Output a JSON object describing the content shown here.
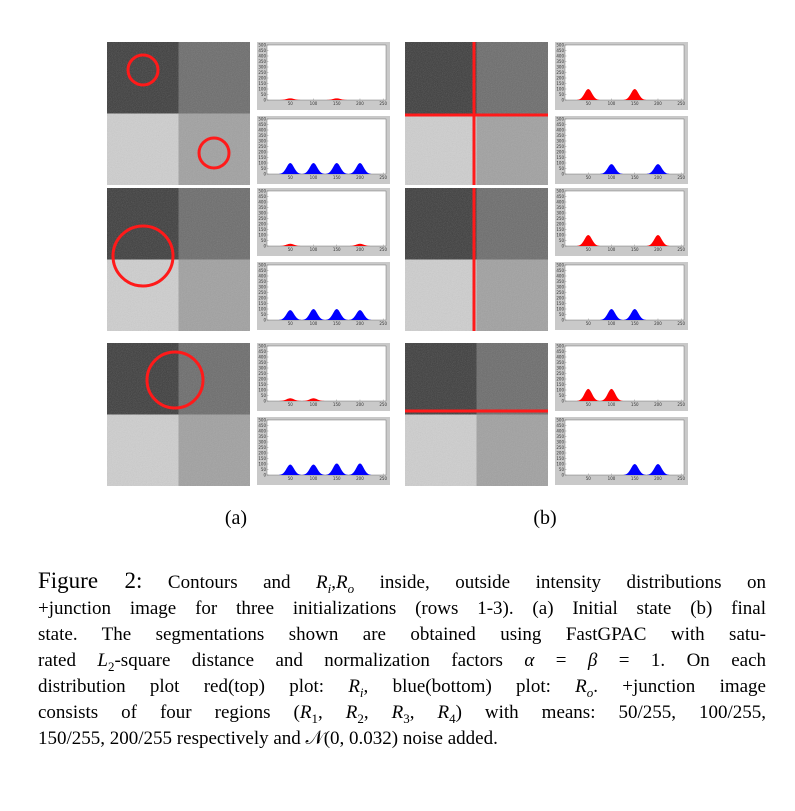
{
  "figure": {
    "inside_color": "#ff0000",
    "outside_color": "#0000ff",
    "hist_xlim": [
      0,
      256
    ],
    "hist_ylim": [
      0,
      500
    ],
    "hist_xticks": [
      50,
      100,
      150,
      200,
      250
    ],
    "hist_yticks": [
      0,
      50,
      100,
      150,
      200,
      250,
      300,
      350,
      400,
      450,
      500
    ],
    "columns": [
      {
        "label": "(a)",
        "rows": [
          {
            "inside": [
              {
                "mean": 50,
                "height": 15
              },
              {
                "mean": 150,
                "height": 15
              }
            ],
            "outside": [
              {
                "mean": 50,
                "height": 100
              },
              {
                "mean": 100,
                "height": 100
              },
              {
                "mean": 150,
                "height": 100
              },
              {
                "mean": 200,
                "height": 100
              }
            ]
          },
          {
            "inside": [
              {
                "mean": 50,
                "height": 20
              },
              {
                "mean": 200,
                "height": 20
              }
            ],
            "outside": [
              {
                "mean": 50,
                "height": 90
              },
              {
                "mean": 100,
                "height": 100
              },
              {
                "mean": 150,
                "height": 100
              },
              {
                "mean": 200,
                "height": 90
              }
            ]
          },
          {
            "inside": [
              {
                "mean": 50,
                "height": 25
              },
              {
                "mean": 100,
                "height": 25
              }
            ],
            "outside": [
              {
                "mean": 50,
                "height": 95
              },
              {
                "mean": 100,
                "height": 95
              },
              {
                "mean": 150,
                "height": 105
              },
              {
                "mean": 200,
                "height": 105
              }
            ]
          }
        ]
      },
      {
        "label": "(b)",
        "rows": [
          {
            "inside": [
              {
                "mean": 50,
                "height": 100
              },
              {
                "mean": 150,
                "height": 100
              }
            ],
            "outside": [
              {
                "mean": 100,
                "height": 90
              },
              {
                "mean": 200,
                "height": 90
              }
            ]
          },
          {
            "inside": [
              {
                "mean": 50,
                "height": 100
              },
              {
                "mean": 200,
                "height": 100
              }
            ],
            "outside": [
              {
                "mean": 100,
                "height": 100
              },
              {
                "mean": 150,
                "height": 100
              }
            ]
          },
          {
            "inside": [
              {
                "mean": 50,
                "height": 110
              },
              {
                "mean": 100,
                "height": 110
              }
            ],
            "outside": [
              {
                "mean": 150,
                "height": 100
              },
              {
                "mean": 200,
                "height": 100
              }
            ]
          }
        ]
      }
    ]
  },
  "caption": {
    "pieces": [
      "Figure 2:",
      " Contours and ",
      "R",
      "i",
      ",",
      "R",
      "o",
      " inside, outside intensity distributions on",
      "+junction image for three initializations (rows 1-3). (a) Initial state (b) final",
      "state. The segmentations shown are obtained using FastGPAC with satu-",
      "rated ",
      "L",
      "2",
      "-square distance and normalization factors ",
      "α",
      " = ",
      "β",
      " = 1. On each",
      "distribution plot red(top) plot: ",
      "R",
      "i",
      ", blue(bottom) plot: ",
      "R",
      "o",
      ". +junction image",
      "consists of four regions (",
      "R",
      "1",
      ", ",
      "R",
      "2",
      ", ",
      "R",
      "3",
      ", ",
      "R",
      "4",
      ") with means: 50/255, 100/255,",
      "150/255, 200/255 respectively and ",
      "𝒩",
      "(0, 0.032) noise added."
    ]
  }
}
